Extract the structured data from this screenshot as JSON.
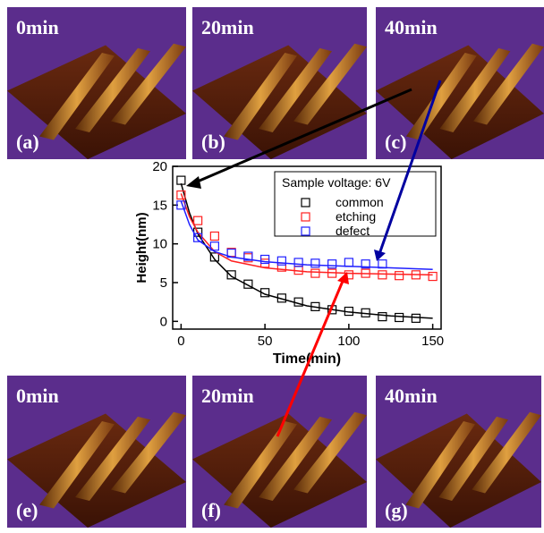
{
  "panels": [
    {
      "time": "0min",
      "label": "(a)"
    },
    {
      "time": "20min",
      "label": "(b)"
    },
    {
      "time": "40min",
      "label": "(c)"
    },
    {
      "time": "0min",
      "label": "(e)"
    },
    {
      "time": "20min",
      "label": "(f)"
    },
    {
      "time": "40min",
      "label": "(g)"
    }
  ],
  "chart_data": {
    "type": "scatter",
    "xlabel": "Time(min)",
    "ylabel": "Height(nm)",
    "legend_title": "Sample voltage: 6V",
    "legend": "upper right",
    "xlim": [
      -5,
      155
    ],
    "ylim": [
      -1,
      20
    ],
    "xticks": [
      0,
      50,
      100,
      150
    ],
    "yticks": [
      0,
      5,
      10,
      15,
      20
    ],
    "fit_x": [
      0,
      5,
      10,
      20,
      30,
      50,
      75,
      100,
      125,
      150
    ],
    "series": [
      {
        "name": "common",
        "color": "#000000",
        "x": [
          0,
          10,
          20,
          30,
          40,
          50,
          60,
          70,
          80,
          90,
          100,
          110,
          120,
          130,
          140
        ],
        "values": [
          18.2,
          11.5,
          8.3,
          6,
          4.8,
          3.7,
          3.0,
          2.5,
          1.9,
          1.5,
          1.3,
          1.1,
          0.6,
          0.5,
          0.4
        ],
        "fit_values": [
          17.8,
          14,
          11.3,
          8,
          5.8,
          3.5,
          2,
          1.2,
          0.7,
          0.4
        ]
      },
      {
        "name": "etching",
        "color": "#ff2020",
        "x": [
          0,
          10,
          20,
          30,
          40,
          50,
          60,
          70,
          80,
          90,
          100,
          110,
          120,
          130,
          140,
          150
        ],
        "values": [
          16.3,
          13,
          11,
          8.9,
          8.2,
          7.5,
          7,
          6.6,
          6.2,
          6.2,
          6,
          6.2,
          6,
          5.9,
          6,
          5.8
        ],
        "fit_values": [
          16.5,
          13.5,
          11.5,
          9,
          7.8,
          6.9,
          6.4,
          6.2,
          6.1,
          6.0
        ]
      },
      {
        "name": "defect",
        "color": "#2020ff",
        "x": [
          0,
          10,
          20,
          30,
          40,
          50,
          60,
          70,
          80,
          90,
          100,
          110,
          120
        ],
        "values": [
          15,
          10.8,
          9.7,
          8.8,
          8.4,
          8.0,
          7.8,
          7.6,
          7.5,
          7.4,
          7.6,
          7.4,
          7.4
        ],
        "fit_values": [
          15.5,
          12.5,
          10.5,
          9,
          8.3,
          7.7,
          7.3,
          7.1,
          6.9,
          6.7
        ]
      }
    ]
  }
}
